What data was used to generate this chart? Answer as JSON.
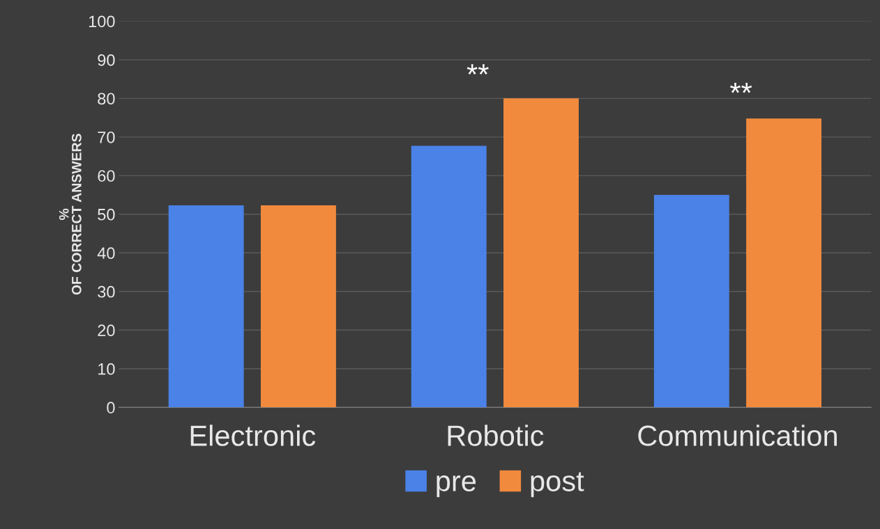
{
  "chart_data": {
    "type": "bar",
    "ylabel": "%\nOF CORRECT ANSWERS",
    "categories": [
      "Electronic",
      "Robotic",
      "Communication"
    ],
    "series": [
      {
        "name": "pre",
        "color": "#4a82e8",
        "values": [
          52.3,
          67.7,
          55
        ]
      },
      {
        "name": "post",
        "color": "#f28a3e",
        "values": [
          52.3,
          80,
          74.8
        ]
      }
    ],
    "ylim": [
      0,
      100
    ],
    "yticks": [
      0,
      10,
      20,
      30,
      40,
      50,
      60,
      70,
      80,
      90,
      100
    ],
    "grid": "y",
    "legend": "bottom",
    "annotations": [
      "**",
      "**"
    ]
  }
}
